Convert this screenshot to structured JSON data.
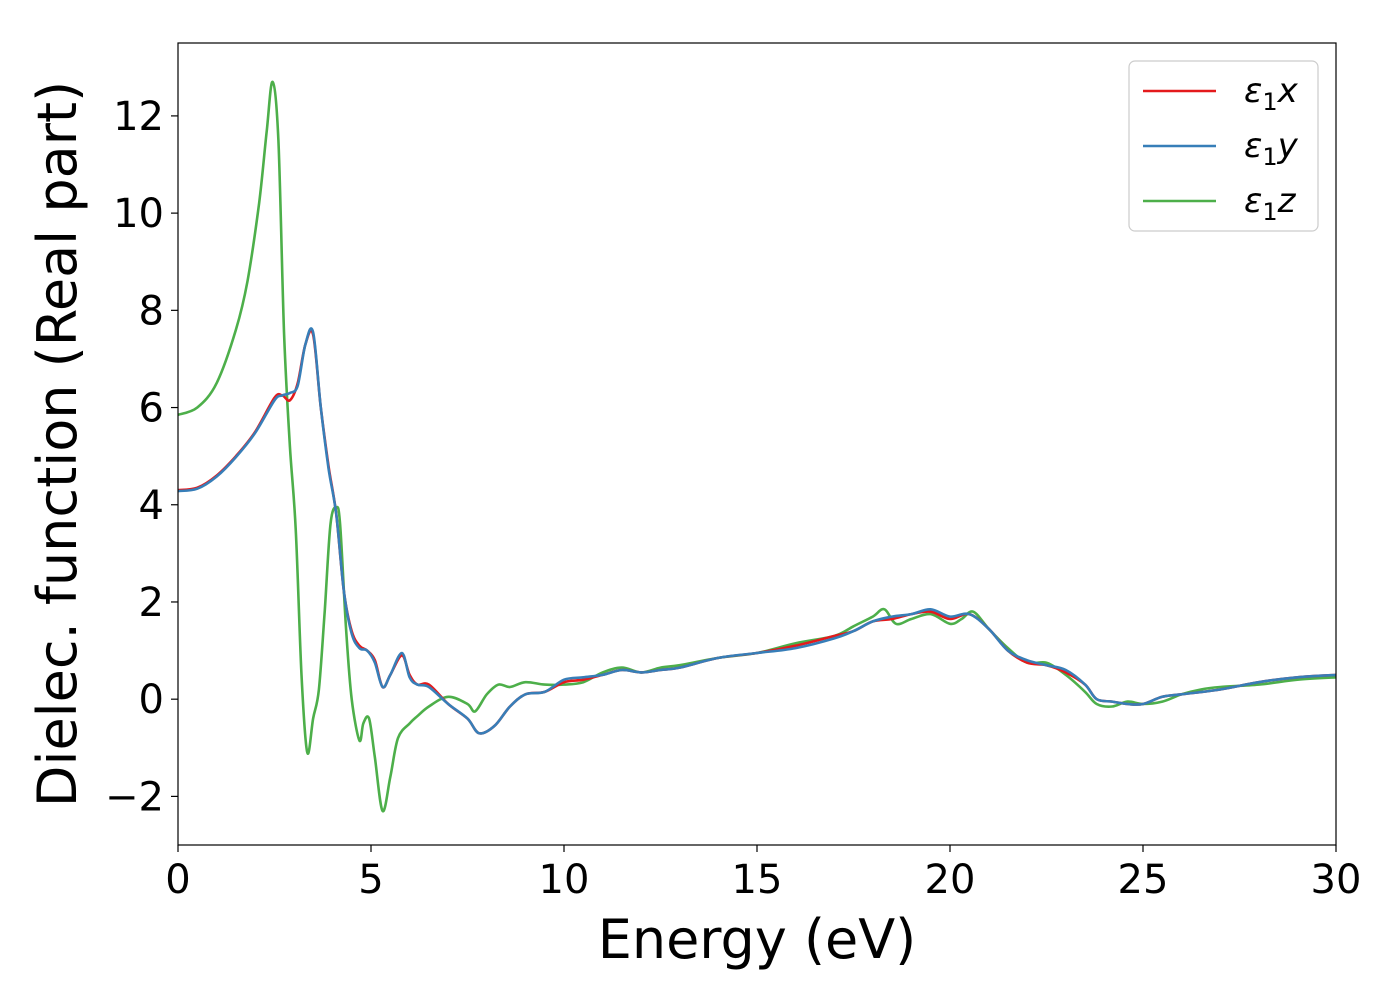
{
  "chart_data": {
    "type": "line",
    "xlabel": "Energy (eV)",
    "ylabel": "Dielec. function (Real part)",
    "xlim": [
      0,
      30
    ],
    "ylim": [
      -3,
      13.5
    ],
    "xticks": [
      0,
      5,
      10,
      15,
      20,
      25,
      30
    ],
    "xtick_labels": [
      "0",
      "5",
      "10",
      "15",
      "20",
      "25",
      "30"
    ],
    "yticks": [
      -2,
      0,
      2,
      4,
      6,
      8,
      10,
      12
    ],
    "ytick_labels": [
      "−2",
      "0",
      "2",
      "4",
      "6",
      "8",
      "10",
      "12"
    ],
    "grid": false,
    "legend_position": "top-right",
    "series": [
      {
        "name": "ε1x",
        "label_main": "ε",
        "label_sub": "1",
        "label_tail": "x",
        "color": "#e41a1c",
        "x": [
          0,
          0.5,
          1,
          1.5,
          2,
          2.5,
          2.7,
          2.9,
          3.1,
          3.3,
          3.5,
          3.7,
          3.9,
          4.1,
          4.3,
          4.5,
          4.7,
          4.9,
          5.1,
          5.3,
          5.5,
          5.8,
          6,
          6.2,
          6.5,
          7,
          7.5,
          7.8,
          8.2,
          8.6,
          9,
          9.5,
          10,
          10.5,
          11,
          11.5,
          12,
          12.5,
          13,
          14,
          15,
          16,
          17,
          17.5,
          18,
          18.5,
          19,
          19.5,
          20,
          20.5,
          21,
          21.5,
          22,
          22.5,
          23,
          23.5,
          23.8,
          24.2,
          24.6,
          25,
          25.5,
          26,
          27,
          28,
          29,
          30
        ],
        "y": [
          4.3,
          4.35,
          4.6,
          5.0,
          5.5,
          6.2,
          6.25,
          6.15,
          6.5,
          7.3,
          7.5,
          6.0,
          4.8,
          3.8,
          2.2,
          1.4,
          1.1,
          1.0,
          0.8,
          0.25,
          0.5,
          0.9,
          0.5,
          0.3,
          0.3,
          -0.1,
          -0.4,
          -0.7,
          -0.55,
          -0.15,
          0.1,
          0.15,
          0.35,
          0.4,
          0.5,
          0.6,
          0.55,
          0.6,
          0.65,
          0.85,
          0.95,
          1.1,
          1.3,
          1.4,
          1.6,
          1.65,
          1.75,
          1.8,
          1.65,
          1.75,
          1.45,
          1.0,
          0.75,
          0.7,
          0.55,
          0.3,
          0.0,
          -0.05,
          -0.1,
          -0.1,
          0.05,
          0.1,
          0.2,
          0.35,
          0.45,
          0.5
        ]
      },
      {
        "name": "ε1y",
        "label_main": "ε",
        "label_sub": "1",
        "label_tail": "y",
        "color": "#377eb8",
        "x": [
          0,
          0.5,
          1,
          1.5,
          2,
          2.5,
          2.7,
          2.9,
          3.1,
          3.3,
          3.5,
          3.7,
          3.9,
          4.1,
          4.3,
          4.5,
          4.7,
          4.9,
          5.1,
          5.3,
          5.5,
          5.8,
          6,
          6.2,
          6.5,
          7,
          7.5,
          7.8,
          8.2,
          8.6,
          9,
          9.5,
          10,
          10.5,
          11,
          11.5,
          12,
          12.5,
          13,
          14,
          15,
          16,
          17,
          17.5,
          18,
          18.5,
          19,
          19.5,
          20,
          20.5,
          21,
          21.5,
          22,
          22.5,
          23,
          23.5,
          23.8,
          24.2,
          24.6,
          25,
          25.5,
          26,
          27,
          28,
          29,
          30
        ],
        "y": [
          4.28,
          4.33,
          4.58,
          4.98,
          5.48,
          6.15,
          6.25,
          6.3,
          6.45,
          7.3,
          7.55,
          6.0,
          4.75,
          3.8,
          2.2,
          1.35,
          1.05,
          1.0,
          0.75,
          0.25,
          0.5,
          0.95,
          0.45,
          0.3,
          0.25,
          -0.1,
          -0.4,
          -0.7,
          -0.55,
          -0.15,
          0.1,
          0.15,
          0.4,
          0.45,
          0.5,
          0.6,
          0.55,
          0.6,
          0.65,
          0.85,
          0.95,
          1.05,
          1.25,
          1.4,
          1.6,
          1.7,
          1.75,
          1.85,
          1.7,
          1.75,
          1.45,
          1.0,
          0.8,
          0.7,
          0.6,
          0.3,
          0.0,
          -0.05,
          -0.1,
          -0.1,
          0.05,
          0.1,
          0.2,
          0.35,
          0.45,
          0.5
        ]
      },
      {
        "name": "ε1z",
        "label_main": "ε",
        "label_sub": "1",
        "label_tail": "z",
        "color": "#4daf4a",
        "x": [
          0,
          0.5,
          1,
          1.5,
          1.8,
          2.1,
          2.3,
          2.45,
          2.6,
          2.75,
          2.9,
          3.05,
          3.2,
          3.35,
          3.5,
          3.65,
          3.8,
          3.95,
          4.1,
          4.2,
          4.35,
          4.5,
          4.7,
          4.8,
          4.95,
          5.1,
          5.3,
          5.5,
          5.7,
          6,
          6.2,
          6.5,
          7,
          7.5,
          7.7,
          8,
          8.3,
          8.6,
          9,
          9.5,
          10,
          10.5,
          11,
          11.5,
          12,
          12.5,
          13,
          14,
          15,
          16,
          17,
          17.5,
          18,
          18.3,
          18.6,
          19,
          19.5,
          20,
          20.3,
          20.6,
          21,
          21.5,
          22,
          22.5,
          23,
          23.5,
          23.8,
          24.2,
          24.6,
          25,
          25.5,
          26,
          26.5,
          27,
          28,
          29,
          30
        ],
        "y": [
          5.85,
          6.0,
          6.5,
          7.6,
          8.6,
          10.2,
          11.7,
          12.7,
          11.5,
          7.5,
          5.2,
          3.5,
          0.5,
          -1.1,
          -0.4,
          0.2,
          1.8,
          3.6,
          3.95,
          3.6,
          1.5,
          0.0,
          -0.85,
          -0.5,
          -0.4,
          -1.2,
          -2.3,
          -1.6,
          -0.8,
          -0.5,
          -0.35,
          -0.15,
          0.05,
          -0.1,
          -0.25,
          0.1,
          0.3,
          0.25,
          0.35,
          0.3,
          0.3,
          0.35,
          0.55,
          0.65,
          0.55,
          0.65,
          0.7,
          0.85,
          0.95,
          1.15,
          1.3,
          1.5,
          1.7,
          1.85,
          1.55,
          1.65,
          1.75,
          1.55,
          1.65,
          1.8,
          1.45,
          1.05,
          0.75,
          0.75,
          0.5,
          0.15,
          -0.1,
          -0.15,
          -0.05,
          -0.1,
          -0.05,
          0.1,
          0.2,
          0.25,
          0.3,
          0.4,
          0.45
        ]
      }
    ]
  }
}
